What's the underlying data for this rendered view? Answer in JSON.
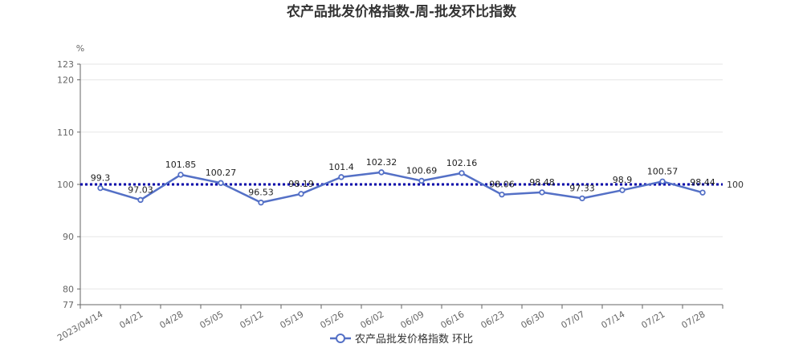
{
  "chart_data": {
    "type": "line",
    "title": "农产品批发价格指数-周-批发环比指数",
    "unit": "%",
    "categories": [
      "2023/04/14",
      "04/21",
      "04/28",
      "05/05",
      "05/12",
      "05/19",
      "05/26",
      "06/02",
      "06/09",
      "06/16",
      "06/23",
      "06/30",
      "07/07",
      "07/14",
      "07/21",
      "07/28"
    ],
    "series": [
      {
        "name": "农产品批发价格指数 环比",
        "values": [
          99.3,
          97.03,
          101.85,
          100.27,
          96.53,
          98.19,
          101.4,
          102.32,
          100.69,
          102.16,
          98.06,
          98.48,
          97.33,
          98.9,
          100.57,
          98.44
        ],
        "labels": [
          "99.3",
          "97.03",
          "101.85",
          "100.27",
          "96.53",
          "98.19",
          "101.4",
          "102.32",
          "100.69",
          "102.16",
          "98.06",
          "98.48",
          "97.33",
          "98.9",
          "100.57",
          "98.44"
        ]
      }
    ],
    "reference_line": {
      "value": 100,
      "label": "100",
      "style": "dotted"
    },
    "ylim": [
      77,
      123
    ],
    "yticks": [
      77,
      80,
      90,
      100,
      110,
      120,
      123
    ],
    "ytick_labels": [
      "77",
      "80",
      "90",
      "100",
      "110",
      "120",
      "123"
    ],
    "grid": true,
    "legend_position": "bottom-center",
    "colors": {
      "series": "#5470c6",
      "reference": "#0000aa",
      "grid": "#e6e6e6",
      "axis": "#666666"
    }
  }
}
